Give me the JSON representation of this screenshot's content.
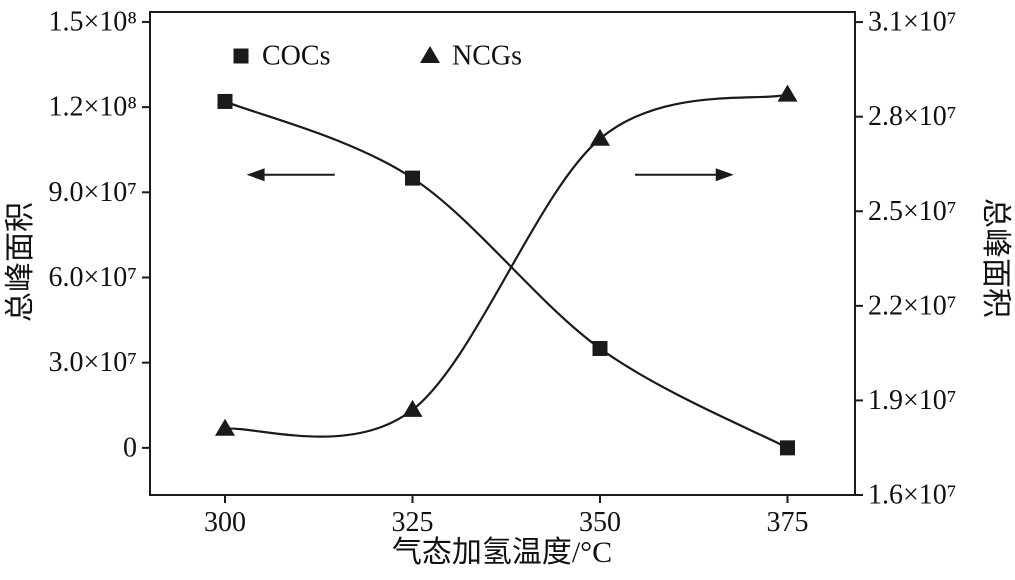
{
  "chart_data": {
    "type": "line",
    "title": "",
    "xlabel": "气态加氢温度/°C",
    "x_ticks": [
      300,
      325,
      350,
      375
    ],
    "x_range": [
      290,
      384
    ],
    "grid": false,
    "left_axis": {
      "title": "总峰面积",
      "range": [
        -16600000,
        153500000
      ],
      "ticks": [
        {
          "v": 0,
          "label": "0"
        },
        {
          "v": 30000000,
          "label": "3.0×10⁷"
        },
        {
          "v": 60000000,
          "label": "6.0×10⁷"
        },
        {
          "v": 90000000,
          "label": "9.0×10⁷"
        },
        {
          "v": 120000000,
          "label": "1.2×10⁸"
        },
        {
          "v": 150000000,
          "label": "1.5×10⁸"
        }
      ]
    },
    "right_axis": {
      "title": "总峰面积",
      "range": [
        16000000,
        31320000
      ],
      "ticks": [
        {
          "v": 16000000,
          "label": "1.6×10⁷"
        },
        {
          "v": 19000000,
          "label": "1.9×10⁷"
        },
        {
          "v": 22000000,
          "label": "2.2×10⁷"
        },
        {
          "v": 25000000,
          "label": "2.5×10⁷"
        },
        {
          "v": 28000000,
          "label": "2.8×10⁷"
        },
        {
          "v": 31000000,
          "label": "3.1×10⁷"
        }
      ]
    },
    "series": [
      {
        "name": "COCs",
        "axis": "left",
        "marker": "square",
        "x": [
          300,
          325,
          350,
          375
        ],
        "y": [
          122000000,
          95000000,
          35000000,
          0
        ]
      },
      {
        "name": "NCGs",
        "axis": "right",
        "marker": "triangle",
        "x": [
          300,
          325,
          350,
          375
        ],
        "y": [
          18100000,
          18700000,
          27300000,
          28700000
        ]
      }
    ],
    "legend": {
      "position": "top-inside",
      "entries": [
        {
          "marker": "square",
          "label": "COCs"
        },
        {
          "marker": "triangle",
          "label": "NCGs"
        }
      ]
    },
    "annotations": {
      "arrows": [
        {
          "points_to": "left-axis",
          "from_frac": [
            0.262,
            0.337
          ],
          "to_frac": [
            0.137,
            0.337
          ]
        },
        {
          "points_to": "right-axis",
          "from_frac": [
            0.688,
            0.337
          ],
          "to_frac": [
            0.828,
            0.337
          ]
        }
      ]
    },
    "colors": {
      "line": "#1a1a1a",
      "background": "#ffffff"
    }
  }
}
